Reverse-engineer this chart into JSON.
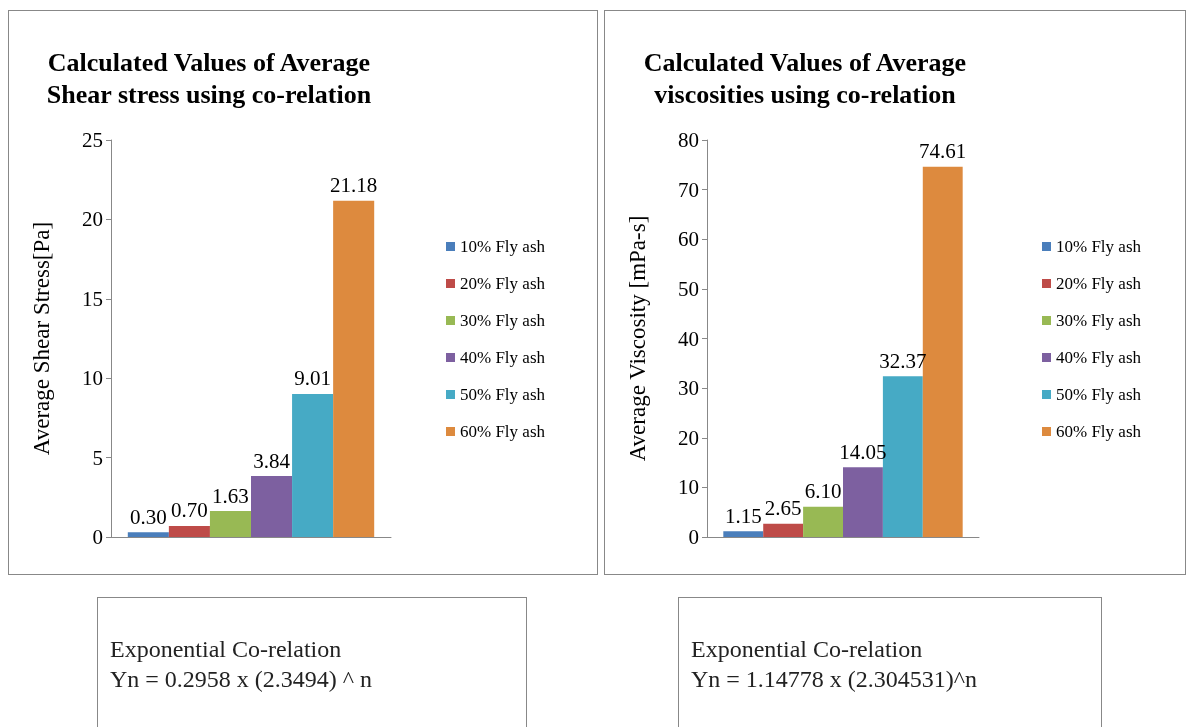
{
  "chart_data": [
    {
      "type": "bar",
      "title": "Calculated Values of Average\nShear stress using co-relation",
      "ylabel": "Average Shear Stress[Pa]",
      "categories": [
        null
      ],
      "ylim": [
        0,
        25
      ],
      "yticks": [
        0,
        5,
        10,
        15,
        20,
        25
      ],
      "data_labels": true,
      "legend": "right",
      "grid": false,
      "series": [
        {
          "name": "10% Fly ash",
          "color": "#4a7ebb",
          "values": [
            0.3
          ],
          "value_labels": [
            "0.30"
          ]
        },
        {
          "name": "20% Fly ash",
          "color": "#be4b48",
          "values": [
            0.7
          ],
          "value_labels": [
            "0.70"
          ]
        },
        {
          "name": "30% Fly ash",
          "color": "#98b954",
          "values": [
            1.63
          ],
          "value_labels": [
            "1.63"
          ]
        },
        {
          "name": "40% Fly ash",
          "color": "#7d60a0",
          "values": [
            3.84
          ],
          "value_labels": [
            "3.84"
          ]
        },
        {
          "name": "50% Fly ash",
          "color": "#46aac5",
          "values": [
            9.01
          ],
          "value_labels": [
            "9.01"
          ]
        },
        {
          "name": "60% Fly ash",
          "color": "#dd8a3e",
          "values": [
            21.18
          ],
          "value_labels": [
            "21.18"
          ]
        }
      ]
    },
    {
      "type": "bar",
      "title": "Calculated Values of Average\nviscosities using co-relation",
      "ylabel": "Average Viscosity [mPa-s]",
      "categories": [
        null
      ],
      "ylim": [
        0,
        80
      ],
      "yticks": [
        0,
        10,
        20,
        30,
        40,
        50,
        60,
        70,
        80
      ],
      "data_labels": true,
      "legend": "right",
      "grid": false,
      "series": [
        {
          "name": "10% Fly ash",
          "color": "#4a7ebb",
          "values": [
            1.15
          ],
          "value_labels": [
            "1.15"
          ]
        },
        {
          "name": "20% Fly ash",
          "color": "#be4b48",
          "values": [
            2.65
          ],
          "value_labels": [
            "2.65"
          ]
        },
        {
          "name": "30% Fly ash",
          "color": "#98b954",
          "values": [
            6.1
          ],
          "value_labels": [
            "6.10"
          ]
        },
        {
          "name": "40% Fly ash",
          "color": "#7d60a0",
          "values": [
            14.05
          ],
          "value_labels": [
            "14.05"
          ]
        },
        {
          "name": "50% Fly ash",
          "color": "#46aac5",
          "values": [
            32.37
          ],
          "value_labels": [
            "32.37"
          ]
        },
        {
          "name": "60% Fly ash",
          "color": "#dd8a3e",
          "values": [
            74.61
          ],
          "value_labels": [
            "74.61"
          ]
        }
      ]
    },
    {
      "type": "other",
      "title": "Exponential Co-relation",
      "annotations": [
        "Yn = 0.2958 x (2.3494) ^ n"
      ]
    },
    {
      "type": "other",
      "title": "Exponential Co-relation",
      "annotations": [
        "Yn = 1.14778 x (2.304531)^n"
      ]
    }
  ]
}
